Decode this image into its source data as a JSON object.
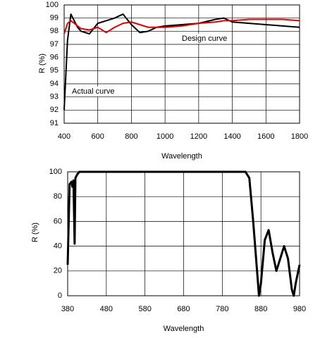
{
  "chart_data": [
    {
      "type": "line",
      "xlabel": "Wavelength",
      "ylabel": "R (%)",
      "x": [
        400,
        420,
        440,
        460,
        480,
        500,
        550,
        600,
        650,
        700,
        750,
        800,
        850,
        900,
        950,
        1000,
        1100,
        1200,
        1300,
        1350,
        1400,
        1500,
        1600,
        1700,
        1800
      ],
      "series": [
        {
          "name": "Actual curve",
          "color": "#000000",
          "values": [
            92,
            97.3,
            99.3,
            98.8,
            98.3,
            98.0,
            97.8,
            98.6,
            98.8,
            99.0,
            99.3,
            98.5,
            97.9,
            98.0,
            98.3,
            98.4,
            98.5,
            98.6,
            98.9,
            99.0,
            98.7,
            98.6,
            98.5,
            98.4,
            98.3
          ]
        },
        {
          "name": "Design curve",
          "color": "#e00000",
          "values": [
            97.8,
            98.6,
            98.8,
            98.6,
            98.4,
            98.2,
            98.1,
            98.3,
            97.9,
            98.3,
            98.6,
            98.7,
            98.5,
            98.3,
            98.3,
            98.3,
            98.4,
            98.6,
            98.7,
            98.8,
            98.8,
            98.9,
            98.9,
            98.9,
            98.8
          ]
        }
      ],
      "xlim": [
        400,
        1800
      ],
      "xticks": [
        400,
        600,
        800,
        1000,
        1200,
        1400,
        1600,
        1800
      ],
      "ylim": [
        91,
        100
      ],
      "yticks": [
        91,
        92,
        93,
        94,
        95,
        96,
        97,
        98,
        99,
        100
      ],
      "grid": true
    },
    {
      "type": "line",
      "xlabel": "Wavelength",
      "ylabel": "R (%)",
      "x": [
        380,
        385,
        390,
        392,
        395,
        398,
        400,
        405,
        410,
        450,
        600,
        700,
        800,
        840,
        850,
        860,
        870,
        875,
        880,
        890,
        900,
        910,
        920,
        930,
        940,
        950,
        960,
        965,
        970,
        980
      ],
      "series": [
        {
          "name": "R",
          "color": "#000000",
          "values": [
            25,
            90,
            92,
            88,
            93,
            42,
            95,
            98,
            100,
            100,
            100,
            100,
            100,
            100,
            95,
            60,
            20,
            0,
            10,
            45,
            53,
            35,
            20,
            30,
            40,
            30,
            5,
            0,
            10,
            25
          ]
        }
      ],
      "xlim": [
        380,
        980
      ],
      "xticks": [
        380,
        480,
        580,
        680,
        780,
        880,
        980
      ],
      "ylim": [
        0,
        100
      ],
      "yticks": [
        0,
        20,
        40,
        60,
        80,
        100
      ],
      "grid": true
    }
  ]
}
